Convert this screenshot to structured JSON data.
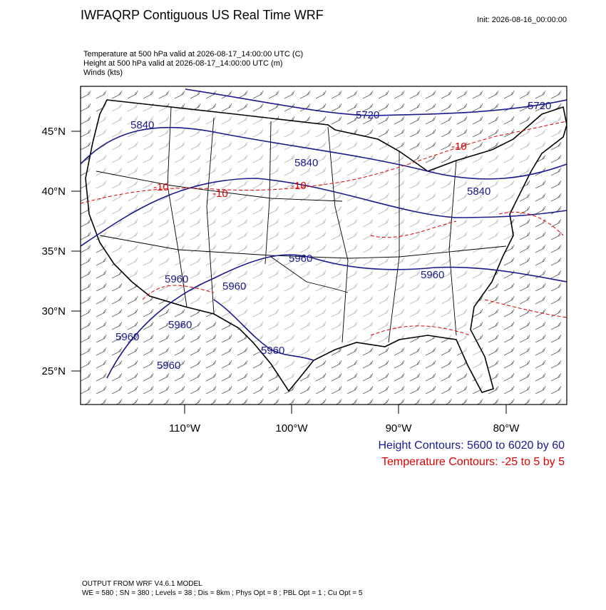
{
  "header": {
    "title": "IWFAQRP Contiguous US Real Time WRF",
    "init": "Init: 2026-08-16_00:00:00"
  },
  "fields": [
    "Temperature at 500 hPa valid at 2026-08-17_14:00:00 UTC   (C)",
    "Height at 500 hPa valid at 2026-08-17_14:00:00 UTC   (m)",
    "Winds   (kts)"
  ],
  "map": {
    "lat_labels": [
      "45°N",
      "40°N",
      "35°N",
      "30°N",
      "25°N"
    ],
    "lon_labels": [
      "110°W",
      "100°W",
      "90°W",
      "80°W"
    ],
    "height_labels": [
      "5840",
      "5720",
      "5720",
      "5840",
      "5840",
      "5960",
      "5960",
      "5960",
      "5960",
      "5960",
      "5960",
      "5960",
      "5960"
    ],
    "temp_labels": [
      "-10",
      "-10",
      "-10",
      "-10"
    ]
  },
  "legend": {
    "height": "Height Contours: 5600 to 6020 by 60",
    "temperature": "Temperature Contours: -25 to 5 by 5"
  },
  "footer": [
    "OUTPUT FROM WRF V4.6.1 MODEL",
    "WE = 580 ; SN = 380 ; Levels = 38 ; Dis = 8km ; Phys Opt = 8 ; PBL Opt = 1 ; Cu Opt = 5"
  ]
}
